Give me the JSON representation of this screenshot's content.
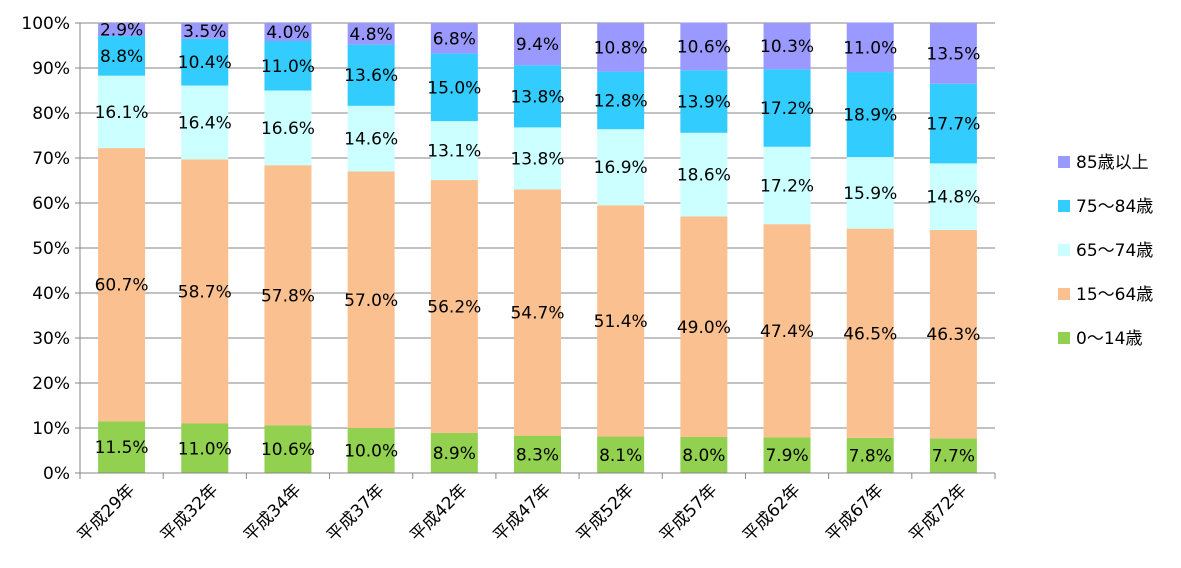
{
  "chart_data": {
    "type": "bar",
    "stacked": true,
    "categories": [
      "平成29年",
      "平成32年",
      "平成34年",
      "平成37年",
      "平成42年",
      "平成47年",
      "平成52年",
      "平成57年",
      "平成62年",
      "平成67年",
      "平成72年"
    ],
    "series": [
      {
        "name": "0〜14歳",
        "color": "#92d050",
        "values": [
          11.5,
          11.0,
          10.6,
          10.0,
          8.9,
          8.3,
          8.1,
          8.0,
          7.9,
          7.8,
          7.7
        ],
        "labels": [
          "11.5%",
          "11.0%",
          "10.6%",
          "10.0%",
          "8.9%",
          "8.3%",
          "8.1%",
          "8.0%",
          "7.9%",
          "7.8%",
          "7.7%"
        ]
      },
      {
        "name": "15〜64歳",
        "color": "#fac090",
        "values": [
          60.7,
          58.7,
          57.8,
          57.0,
          56.2,
          54.7,
          51.4,
          49.0,
          47.4,
          46.5,
          46.3
        ],
        "labels": [
          "60.7%",
          "58.7%",
          "57.8%",
          "57.0%",
          "56.2%",
          "54.7%",
          "51.4%",
          "49.0%",
          "47.4%",
          "46.5%",
          "46.3%"
        ]
      },
      {
        "name": "65〜74歳",
        "color": "#ccffff",
        "values": [
          16.1,
          16.4,
          16.6,
          14.6,
          13.1,
          13.8,
          16.9,
          18.6,
          17.2,
          15.9,
          14.8
        ],
        "labels": [
          "16.1%",
          "16.4%",
          "16.6%",
          "14.6%",
          "13.1%",
          "13.8%",
          "16.9%",
          "18.6%",
          "17.2%",
          "15.9%",
          "14.8%"
        ]
      },
      {
        "name": "75〜84歳",
        "color": "#33ccff",
        "values": [
          8.8,
          10.4,
          11.0,
          13.6,
          15.0,
          13.8,
          12.8,
          13.9,
          17.2,
          18.9,
          17.7
        ],
        "labels": [
          "8.8%",
          "10.4%",
          "11.0%",
          "13.6%",
          "15.0%",
          "13.8%",
          "12.8%",
          "13.9%",
          "17.2%",
          "18.9%",
          "17.7%"
        ]
      },
      {
        "name": "85歳以上",
        "color": "#9999ff",
        "values": [
          2.9,
          3.5,
          4.0,
          4.8,
          6.8,
          9.4,
          10.8,
          10.6,
          10.3,
          11.0,
          13.5
        ],
        "labels": [
          "2.9%",
          "3.5%",
          "4.0%",
          "4.8%",
          "6.8%",
          "9.4%",
          "10.8%",
          "10.6%",
          "10.3%",
          "11.0%",
          "13.5%"
        ]
      }
    ],
    "yticks": [
      "0%",
      "10%",
      "20%",
      "30%",
      "40%",
      "50%",
      "60%",
      "70%",
      "80%",
      "90%",
      "100%"
    ],
    "ylim": [
      0,
      100
    ],
    "grid": true,
    "legend_position": "right",
    "title": "",
    "xlabel": "",
    "ylabel": ""
  }
}
